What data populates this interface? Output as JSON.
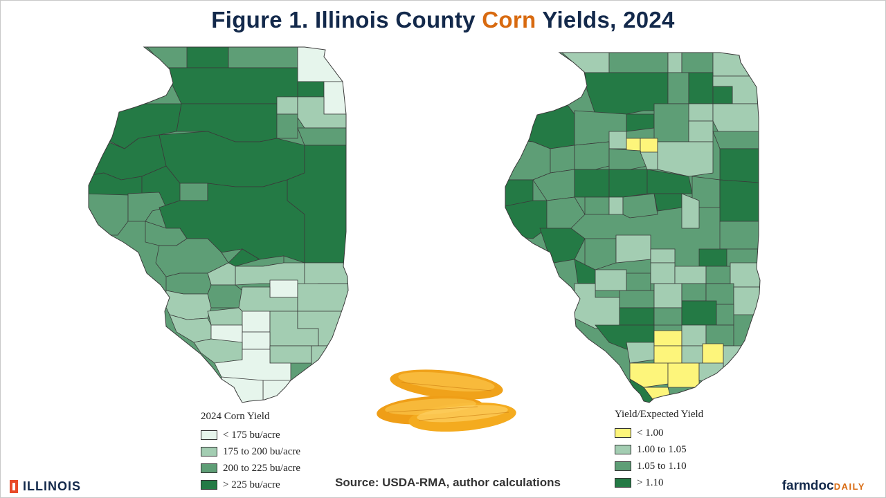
{
  "title": {
    "prefix": "Figure 1. Illinois County ",
    "highlight": "Corn",
    "suffix": " Yields, 2024"
  },
  "colors": {
    "c1": "#e6f5ec",
    "c2": "#a3cdb2",
    "c3": "#5e9e76",
    "c4": "#247a45",
    "yellow": "#fdf57b",
    "accent": "#d86a10",
    "navy": "#13294b",
    "border": "#3a3a3a"
  },
  "left_map": {
    "legend_title": "2024 Corn Yield",
    "legend": [
      {
        "label": "< 175 bu/acre",
        "class": "c1"
      },
      {
        "label": "175 to 200 bu/acre",
        "class": "c2"
      },
      {
        "label": "200 to 225 bu/acre",
        "class": "c3"
      },
      {
        "label": "> 225 bu/acre",
        "class": "c4"
      }
    ]
  },
  "right_map": {
    "legend_title": "Yield/Expected Yield",
    "legend": [
      {
        "label": "< 1.00",
        "class": "yellow"
      },
      {
        "label": "1.00 to 1.05",
        "class": "c2"
      },
      {
        "label": "1.05 to 1.10",
        "class": "c3"
      },
      {
        "label": "> 1.10",
        "class": "c4"
      }
    ]
  },
  "source": "Source: USDA-RMA, author calculations",
  "logos": {
    "illinois": "ILLINOIS",
    "farmdoc": "farmdoc",
    "daily": "DAILY"
  },
  "image_icon": "corn-cobs-image"
}
